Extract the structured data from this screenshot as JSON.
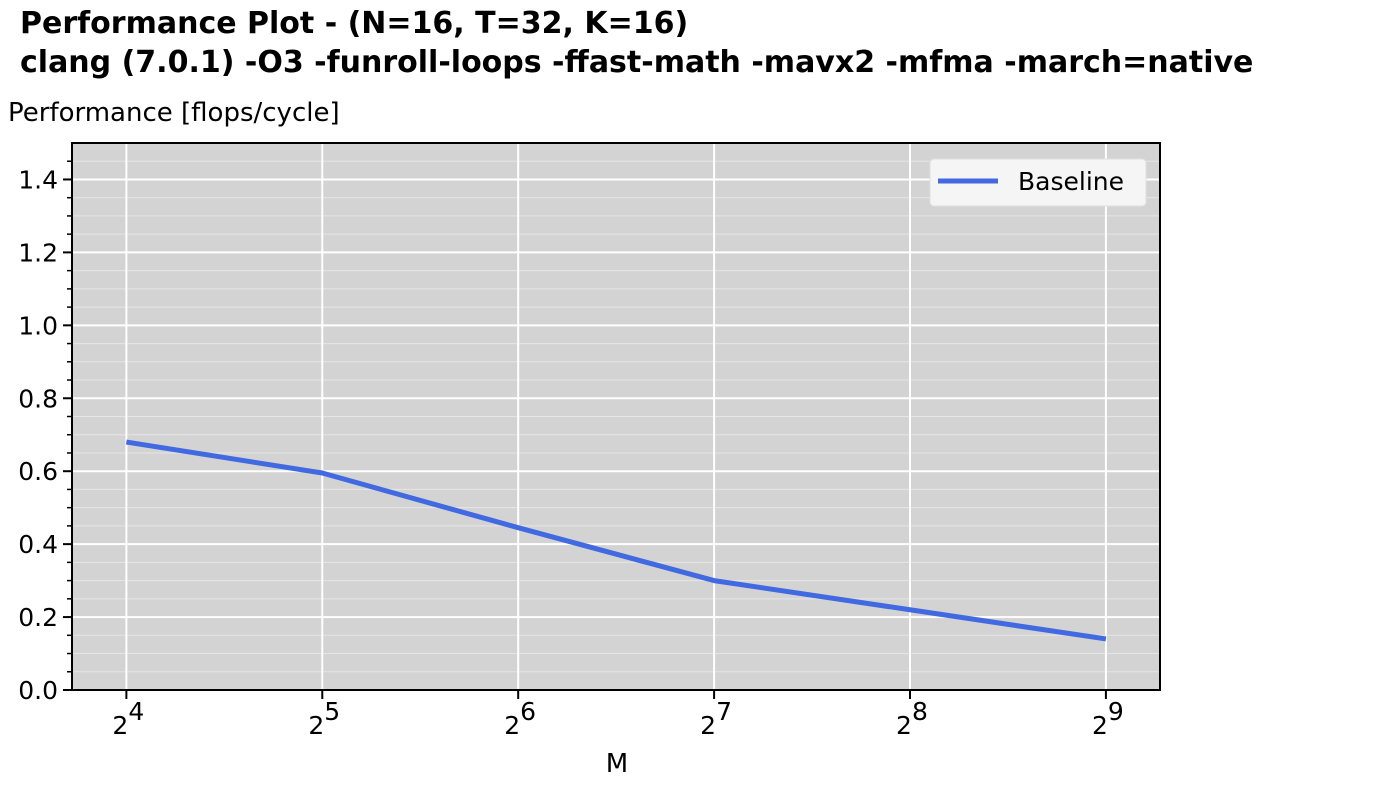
{
  "chart_data": {
    "type": "line",
    "title_line1": "Performance Plot  -  (N=16, T=32, K=16)",
    "title_line2": "clang (7.0.1) -O3 -funroll-loops -ffast-math -mavx2 -mfma -march=native",
    "ylabel": "Performance [flops/cycle]",
    "xlabel": "M",
    "x_scale": "log2",
    "x": [
      16,
      32,
      64,
      128,
      256,
      512
    ],
    "xticks": [
      {
        "base": "2",
        "exp": "4",
        "value": 16
      },
      {
        "base": "2",
        "exp": "5",
        "value": 32
      },
      {
        "base": "2",
        "exp": "6",
        "value": 64
      },
      {
        "base": "2",
        "exp": "7",
        "value": 128
      },
      {
        "base": "2",
        "exp": "8",
        "value": 256
      },
      {
        "base": "2",
        "exp": "9",
        "value": 512
      }
    ],
    "xlim": [
      13.2,
      620
    ],
    "ylim": [
      0,
      1.5
    ],
    "yticks": [
      "0.0",
      "0.2",
      "0.4",
      "0.6",
      "0.8",
      "1.0",
      "1.2",
      "1.4"
    ],
    "series": [
      {
        "name": "Baseline",
        "values": [
          0.68,
          0.595,
          0.445,
          0.3,
          0.22,
          0.14
        ],
        "color": "#4169e1"
      }
    ],
    "grid": true,
    "legend": "top-right",
    "background_color": "#d3d3d3",
    "grid_color": "#ffffff"
  }
}
